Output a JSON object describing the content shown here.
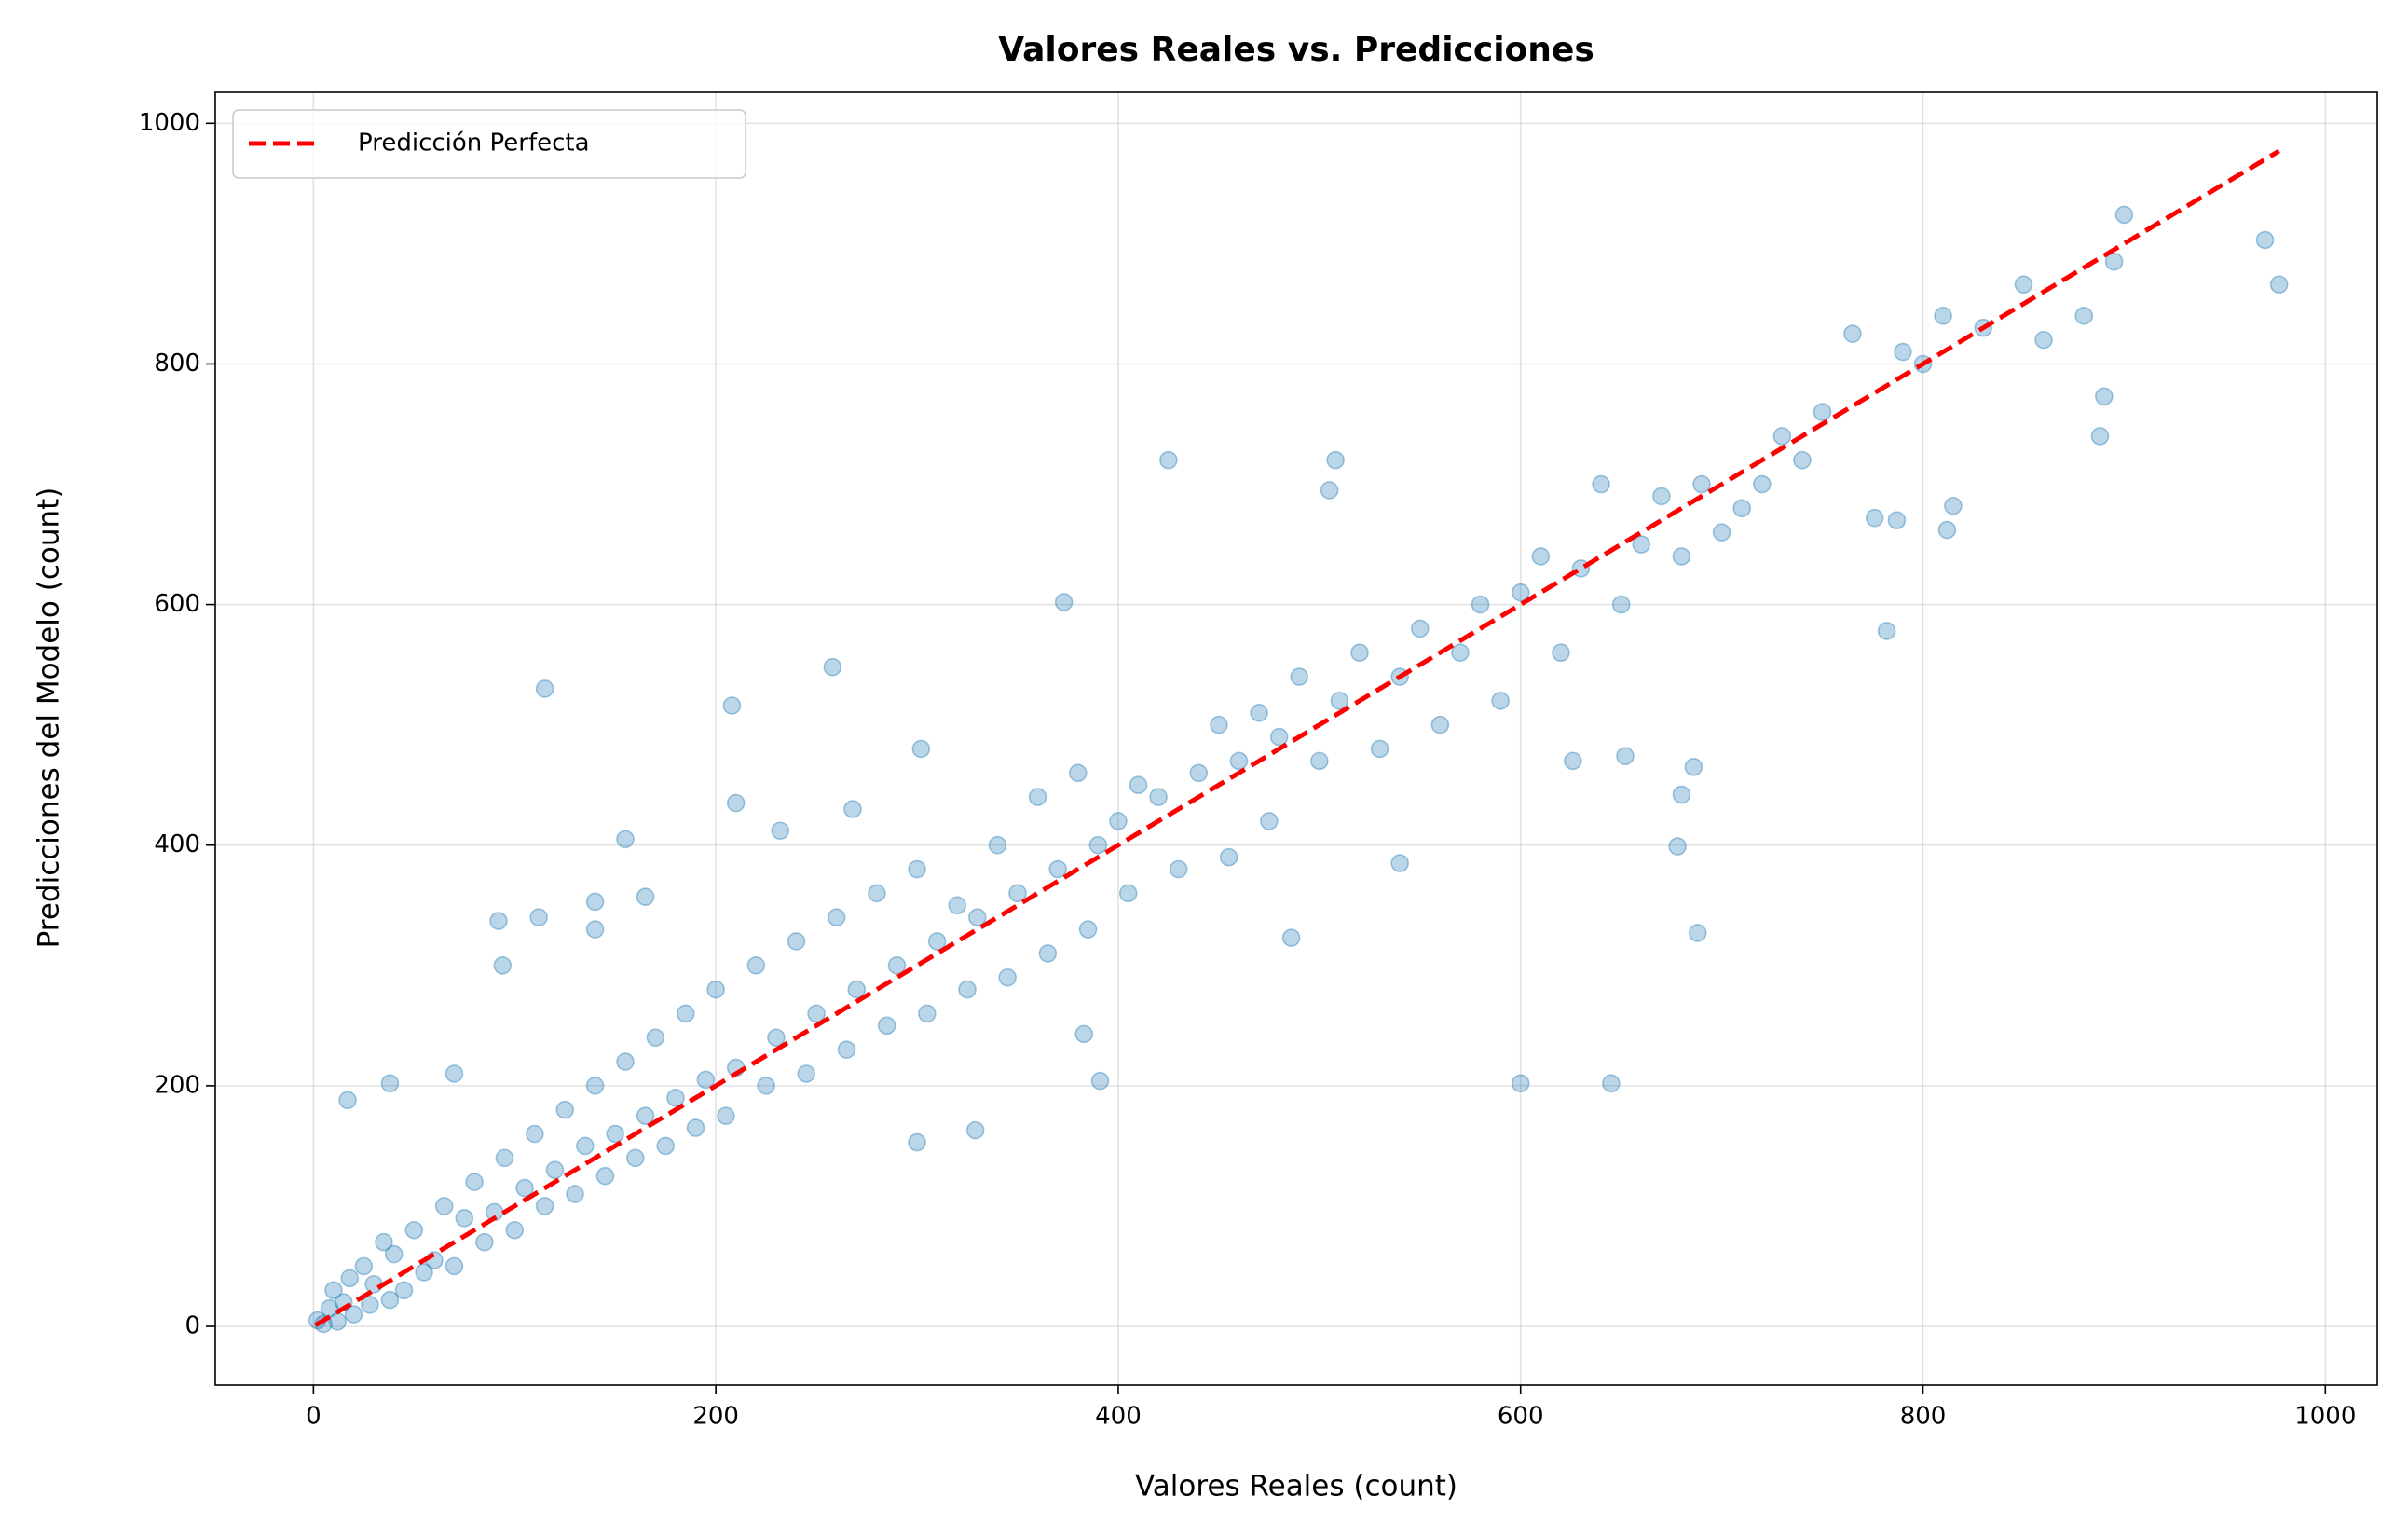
{
  "chart_data": {
    "type": "scatter",
    "title": "Valores Reales vs. Predicciones",
    "x_label": "Valores Reales (count)",
    "y_label": "Predicciones del Modelo (count)",
    "xlim": [
      -48.8,
      1025.8
    ],
    "ylim": [
      -48.8,
      1025.8
    ],
    "xticks": [
      0,
      200,
      400,
      600,
      800,
      1000
    ],
    "yticks": [
      0,
      200,
      400,
      600,
      800,
      1000
    ],
    "grid": true,
    "legend": "upper-left",
    "series": [
      {
        "type": "scatter",
        "color": "#1f77b4",
        "x": [
          425,
          508,
          505,
          373,
          258,
          115,
          208,
          155,
          600,
          645,
          688,
          678,
          970,
          977,
          900,
          890,
          888,
          815,
          812,
          782,
          776,
          787,
          680,
          686,
          652,
          626,
          92,
          112,
          94,
          140,
          140,
          165,
          38,
          17,
          70,
          486,
          540,
          391,
          329,
          300,
          210,
          232,
          268,
          302,
          383,
          2,
          5,
          8,
          10,
          12,
          15,
          18,
          20,
          25,
          28,
          30,
          35,
          38,
          40,
          45,
          50,
          55,
          60,
          65,
          70,
          75,
          80,
          85,
          90,
          95,
          100,
          105,
          110,
          115,
          120,
          125,
          130,
          135,
          140,
          145,
          150,
          155,
          160,
          165,
          170,
          175,
          180,
          185,
          190,
          195,
          200,
          205,
          210,
          220,
          225,
          230,
          240,
          245,
          250,
          260,
          265,
          270,
          280,
          285,
          290,
          300,
          305,
          310,
          320,
          325,
          330,
          340,
          345,
          350,
          360,
          365,
          370,
          380,
          385,
          390,
          400,
          405,
          410,
          420,
          430,
          440,
          450,
          455,
          460,
          470,
          475,
          480,
          490,
          500,
          510,
          520,
          530,
          540,
          550,
          560,
          570,
          580,
          590,
          600,
          610,
          620,
          630,
          640,
          650,
          660,
          670,
          680,
          690,
          700,
          710,
          720,
          730,
          740,
          750,
          765,
          790,
          800,
          810,
          830,
          850,
          860,
          880,
          895
        ],
        "values": [
          720,
          720,
          695,
          602,
          548,
          530,
          516,
          405,
          202,
          202,
          327,
          399,
          903,
          866,
          924,
          773,
          740,
          682,
          662,
          578,
          672,
          670,
          442,
          465,
          474,
          470,
          337,
          340,
          300,
          330,
          353,
          357,
          202,
          188,
          210,
          323,
          385,
          204,
          163,
          153,
          435,
          412,
          430,
          480,
          243,
          5,
          2,
          15,
          30,
          4,
          20,
          40,
          10,
          50,
          18,
          35,
          70,
          22,
          60,
          30,
          80,
          45,
          55,
          100,
          50,
          90,
          120,
          70,
          95,
          140,
          80,
          115,
          160,
          100,
          130,
          180,
          110,
          150,
          200,
          125,
          160,
          220,
          140,
          175,
          240,
          150,
          190,
          260,
          165,
          205,
          280,
          175,
          215,
          300,
          200,
          240,
          320,
          210,
          260,
          340,
          230,
          280,
          360,
          250,
          300,
          380,
          260,
          320,
          350,
          280,
          340,
          400,
          290,
          360,
          440,
          310,
          380,
          460,
          330,
          400,
          420,
          360,
          450,
          440,
          380,
          460,
          500,
          390,
          470,
          510,
          420,
          490,
          540,
          470,
          520,
          560,
          480,
          540,
          580,
          500,
          560,
          600,
          520,
          610,
          640,
          560,
          630,
          700,
          600,
          650,
          690,
          640,
          700,
          660,
          680,
          700,
          740,
          720,
          760,
          825,
          810,
          800,
          840,
          830,
          866,
          820,
          840,
          885
        ]
      },
      {
        "type": "line",
        "name": "Predicción Perfecta",
        "color": "#ff0000",
        "x": [
          1,
          977
        ],
        "values": [
          1,
          977
        ]
      }
    ]
  }
}
